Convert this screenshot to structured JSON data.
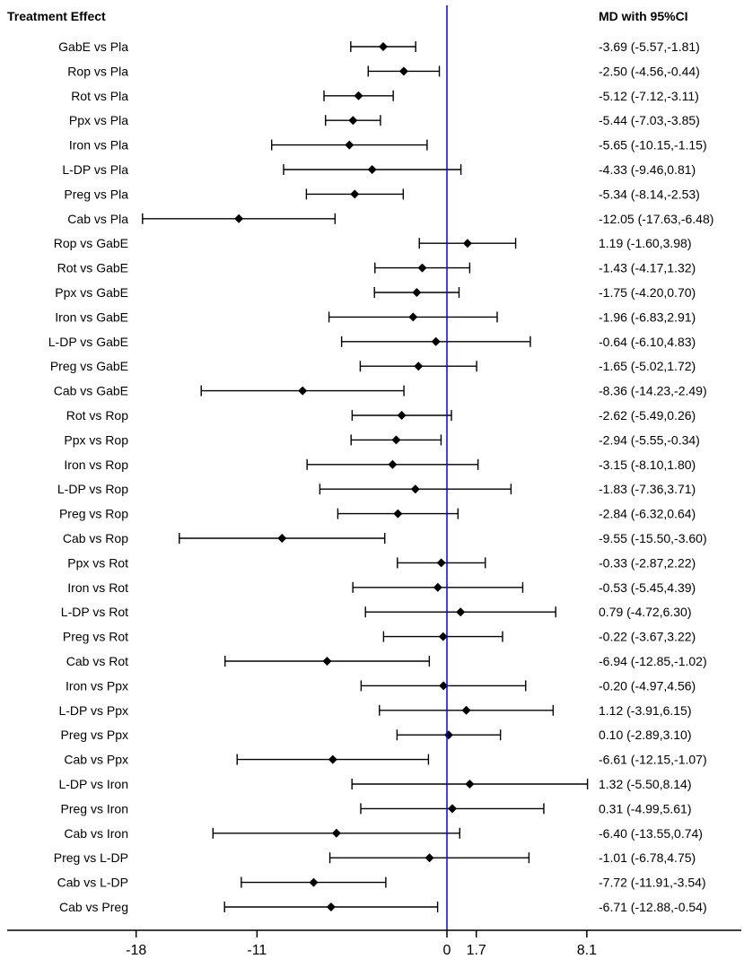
{
  "chart_data": {
    "type": "forest",
    "left_header": "Treatment Effect",
    "right_header": "MD with 95%CI",
    "reference_value": 0,
    "x_ticks": [
      -18,
      -11,
      0,
      1.7,
      8.1
    ],
    "x_tick_labels": [
      "-18",
      "-11",
      "0",
      "1.7",
      "8.1"
    ],
    "colors": {
      "reference_line": "#0000ff",
      "marks": "#000000"
    },
    "rows": [
      {
        "label": "GabE vs Pla",
        "md": -3.69,
        "lo": -5.57,
        "hi": -1.81,
        "text": "-3.69 (-5.57,-1.81)"
      },
      {
        "label": "Rop vs Pla",
        "md": -2.5,
        "lo": -4.56,
        "hi": -0.44,
        "text": "-2.50 (-4.56,-0.44)"
      },
      {
        "label": "Rot vs Pla",
        "md": -5.12,
        "lo": -7.12,
        "hi": -3.11,
        "text": "-5.12 (-7.12,-3.11)"
      },
      {
        "label": "Ppx vs Pla",
        "md": -5.44,
        "lo": -7.03,
        "hi": -3.85,
        "text": "-5.44 (-7.03,-3.85)"
      },
      {
        "label": "Iron vs Pla",
        "md": -5.65,
        "lo": -10.15,
        "hi": -1.15,
        "text": "-5.65 (-10.15,-1.15)"
      },
      {
        "label": "L-DP vs Pla",
        "md": -4.33,
        "lo": -9.46,
        "hi": 0.81,
        "text": "-4.33 (-9.46,0.81)"
      },
      {
        "label": "Preg vs Pla",
        "md": -5.34,
        "lo": -8.14,
        "hi": -2.53,
        "text": "-5.34 (-8.14,-2.53)"
      },
      {
        "label": "Cab vs Pla",
        "md": -12.05,
        "lo": -17.63,
        "hi": -6.48,
        "text": "-12.05 (-17.63,-6.48)"
      },
      {
        "label": "Rop vs GabE",
        "md": 1.19,
        "lo": -1.6,
        "hi": 3.98,
        "text": "1.19 (-1.60,3.98)"
      },
      {
        "label": "Rot vs GabE",
        "md": -1.43,
        "lo": -4.17,
        "hi": 1.32,
        "text": "-1.43 (-4.17,1.32)"
      },
      {
        "label": "Ppx vs GabE",
        "md": -1.75,
        "lo": -4.2,
        "hi": 0.7,
        "text": "-1.75 (-4.20,0.70)"
      },
      {
        "label": "Iron vs GabE",
        "md": -1.96,
        "lo": -6.83,
        "hi": 2.91,
        "text": "-1.96 (-6.83,2.91)"
      },
      {
        "label": "L-DP vs GabE",
        "md": -0.64,
        "lo": -6.1,
        "hi": 4.83,
        "text": "-0.64 (-6.10,4.83)"
      },
      {
        "label": "Preg vs GabE",
        "md": -1.65,
        "lo": -5.02,
        "hi": 1.72,
        "text": "-1.65 (-5.02,1.72)"
      },
      {
        "label": "Cab vs GabE",
        "md": -8.36,
        "lo": -14.23,
        "hi": -2.49,
        "text": "-8.36 (-14.23,-2.49)"
      },
      {
        "label": "Rot vs Rop",
        "md": -2.62,
        "lo": -5.49,
        "hi": 0.26,
        "text": "-2.62 (-5.49,0.26)"
      },
      {
        "label": "Ppx vs Rop",
        "md": -2.94,
        "lo": -5.55,
        "hi": -0.34,
        "text": "-2.94 (-5.55,-0.34)"
      },
      {
        "label": "Iron vs Rop",
        "md": -3.15,
        "lo": -8.1,
        "hi": 1.8,
        "text": "-3.15 (-8.10,1.80)"
      },
      {
        "label": "L-DP vs Rop",
        "md": -1.83,
        "lo": -7.36,
        "hi": 3.71,
        "text": "-1.83 (-7.36,3.71)"
      },
      {
        "label": "Preg vs Rop",
        "md": -2.84,
        "lo": -6.32,
        "hi": 0.64,
        "text": "-2.84 (-6.32,0.64)"
      },
      {
        "label": "Cab vs Rop",
        "md": -9.55,
        "lo": -15.5,
        "hi": -3.6,
        "text": "-9.55 (-15.50,-3.60)"
      },
      {
        "label": "Ppx vs Rot",
        "md": -0.33,
        "lo": -2.87,
        "hi": 2.22,
        "text": "-0.33 (-2.87,2.22)"
      },
      {
        "label": "Iron vs Rot",
        "md": -0.53,
        "lo": -5.45,
        "hi": 4.39,
        "text": "-0.53 (-5.45,4.39)"
      },
      {
        "label": "L-DP vs Rot",
        "md": 0.79,
        "lo": -4.72,
        "hi": 6.3,
        "text": "0.79 (-4.72,6.30)"
      },
      {
        "label": "Preg vs Rot",
        "md": -0.22,
        "lo": -3.67,
        "hi": 3.22,
        "text": "-0.22 (-3.67,3.22)"
      },
      {
        "label": "Cab vs Rot",
        "md": -6.94,
        "lo": -12.85,
        "hi": -1.02,
        "text": "-6.94 (-12.85,-1.02)"
      },
      {
        "label": "Iron vs Ppx",
        "md": -0.2,
        "lo": -4.97,
        "hi": 4.56,
        "text": "-0.20 (-4.97,4.56)"
      },
      {
        "label": "L-DP vs Ppx",
        "md": 1.12,
        "lo": -3.91,
        "hi": 6.15,
        "text": "1.12 (-3.91,6.15)"
      },
      {
        "label": "Preg vs Ppx",
        "md": 0.1,
        "lo": -2.89,
        "hi": 3.1,
        "text": "0.10 (-2.89,3.10)"
      },
      {
        "label": "Cab vs Ppx",
        "md": -6.61,
        "lo": -12.15,
        "hi": -1.07,
        "text": "-6.61 (-12.15,-1.07)"
      },
      {
        "label": "L-DP vs Iron",
        "md": 1.32,
        "lo": -5.5,
        "hi": 8.14,
        "text": "1.32 (-5.50,8.14)"
      },
      {
        "label": "Preg vs Iron",
        "md": 0.31,
        "lo": -4.99,
        "hi": 5.61,
        "text": "0.31 (-4.99,5.61)"
      },
      {
        "label": "Cab vs Iron",
        "md": -6.4,
        "lo": -13.55,
        "hi": 0.74,
        "text": "-6.40 (-13.55,0.74)"
      },
      {
        "label": "Preg vs L-DP",
        "md": -1.01,
        "lo": -6.78,
        "hi": 4.75,
        "text": "-1.01 (-6.78,4.75)"
      },
      {
        "label": "Cab vs L-DP",
        "md": -7.72,
        "lo": -11.91,
        "hi": -3.54,
        "text": "-7.72 (-11.91,-3.54)"
      },
      {
        "label": "Cab vs Preg",
        "md": -6.71,
        "lo": -12.88,
        "hi": -0.54,
        "text": "-6.71 (-12.88,-0.54)"
      }
    ]
  }
}
